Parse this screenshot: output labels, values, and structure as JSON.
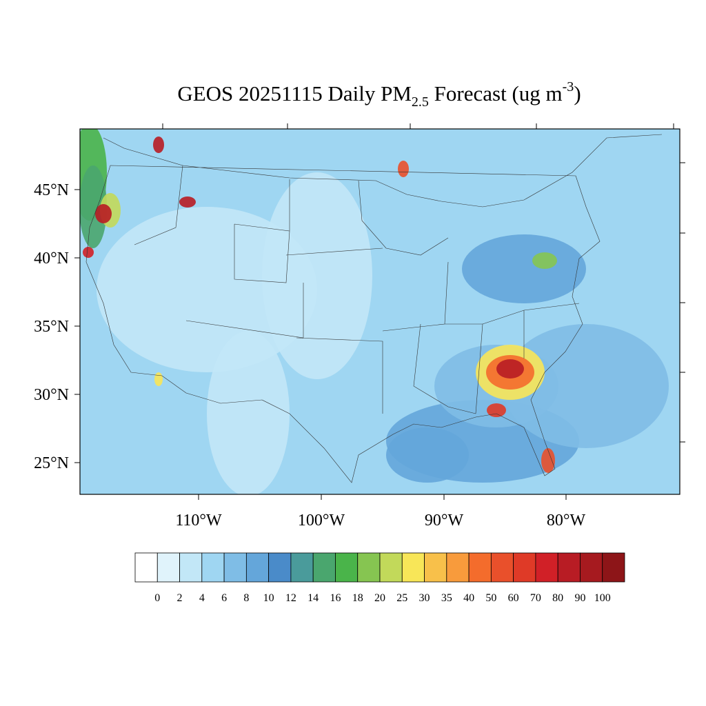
{
  "title": {
    "main": "GEOS 20251115 Daily PM",
    "sub": "2.5",
    "rest": " Forecast (ug m",
    "sup": "-3",
    "end": ")"
  },
  "lat_labels": [
    "45°N",
    "40°N",
    "35°N",
    "30°N",
    "25°N"
  ],
  "lon_labels": [
    "110°W",
    "100°W",
    "90°W",
    "80°W"
  ],
  "colorbar": {
    "colors": [
      "#ffffff",
      "#e0f3fb",
      "#c2e7f7",
      "#9fd6f2",
      "#7fbde6",
      "#64a6da",
      "#4a8bc9",
      "#4a9b9b",
      "#4aa66e",
      "#4ab44a",
      "#86c551",
      "#c2d95a",
      "#f8e658",
      "#f8c04a",
      "#f89b3c",
      "#f46c2c",
      "#e9502b",
      "#df3a27",
      "#d12027",
      "#b81c24",
      "#a61a1f",
      "#8d1518"
    ],
    "labels": [
      "0",
      "2",
      "4",
      "6",
      "8",
      "10",
      "12",
      "14",
      "16",
      "18",
      "20",
      "25",
      "30",
      "35",
      "40",
      "50",
      "60",
      "70",
      "80",
      "90",
      "100"
    ]
  }
}
